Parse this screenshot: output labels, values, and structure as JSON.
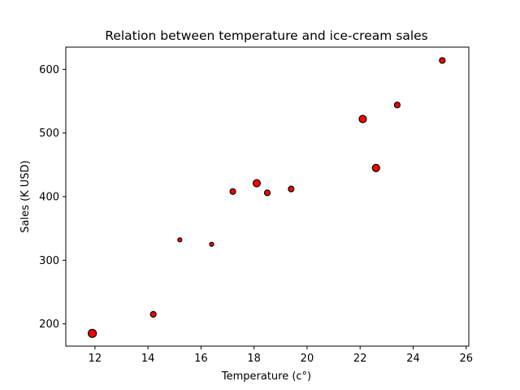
{
  "chart_data": {
    "type": "scatter",
    "title": "Relation between temperature and ice-cream sales",
    "xlabel": "Temperature (c°)",
    "ylabel": "Sales (K USD)",
    "xlim": [
      10.9,
      26.1
    ],
    "ylim": [
      165,
      635
    ],
    "xticks": [
      12,
      14,
      16,
      18,
      20,
      22,
      24,
      26
    ],
    "yticks": [
      200,
      300,
      400,
      500,
      600
    ],
    "grid": false,
    "colors": {
      "marker_fill": "#ff0000",
      "marker_edge": "#000000"
    },
    "points": [
      {
        "x": 11.9,
        "y": 185,
        "size": 5
      },
      {
        "x": 14.2,
        "y": 215,
        "size": 3.5
      },
      {
        "x": 15.2,
        "y": 332,
        "size": 2.5
      },
      {
        "x": 16.4,
        "y": 325,
        "size": 2.5
      },
      {
        "x": 17.2,
        "y": 408,
        "size": 3.5
      },
      {
        "x": 18.1,
        "y": 421,
        "size": 4.5
      },
      {
        "x": 18.5,
        "y": 406,
        "size": 3.5
      },
      {
        "x": 19.4,
        "y": 412,
        "size": 3.5
      },
      {
        "x": 22.1,
        "y": 522,
        "size": 4.5
      },
      {
        "x": 22.6,
        "y": 445,
        "size": 4.5
      },
      {
        "x": 23.4,
        "y": 544,
        "size": 3.5
      },
      {
        "x": 25.1,
        "y": 614,
        "size": 3.5
      }
    ]
  }
}
